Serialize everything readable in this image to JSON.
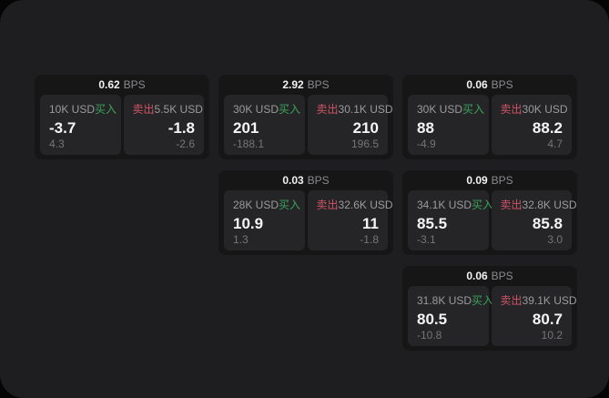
{
  "labels": {
    "buy": "买入",
    "sell": "卖出",
    "unit": "BPS"
  },
  "colors": {
    "window_bg": "#1e1e20",
    "card_bg": "#161617",
    "panel_bg": "#252527",
    "buy_green": "#3aa35a",
    "sell_red": "#cf5466"
  },
  "cards": [
    {
      "row": 1,
      "col": 1,
      "bps": "0.62",
      "buy": {
        "amount": "10K USD",
        "value": "-3.7",
        "sub": "4.3"
      },
      "sell": {
        "amount": "5.5K USD",
        "value": "-1.8",
        "sub": "-2.6"
      }
    },
    {
      "row": 1,
      "col": 2,
      "bps": "2.92",
      "buy": {
        "amount": "30K USD",
        "value": "201",
        "sub": "-188.1"
      },
      "sell": {
        "amount": "30.1K USD",
        "value": "210",
        "sub": "196.5"
      }
    },
    {
      "row": 1,
      "col": 3,
      "bps": "0.06",
      "buy": {
        "amount": "30K USD",
        "value": "88",
        "sub": "-4.9"
      },
      "sell": {
        "amount": "30K USD",
        "value": "88.2",
        "sub": "4.7"
      }
    },
    {
      "row": 2,
      "col": 2,
      "bps": "0.03",
      "buy": {
        "amount": "28K USD",
        "value": "10.9",
        "sub": "1.3"
      },
      "sell": {
        "amount": "32.6K USD",
        "value": "11",
        "sub": "-1.8"
      }
    },
    {
      "row": 2,
      "col": 3,
      "bps": "0.09",
      "buy": {
        "amount": "34.1K USD",
        "value": "85.5",
        "sub": "-3.1"
      },
      "sell": {
        "amount": "32.8K USD",
        "value": "85.8",
        "sub": "3.0"
      }
    },
    {
      "row": 3,
      "col": 3,
      "bps": "0.06",
      "buy": {
        "amount": "31.8K USD",
        "value": "80.5",
        "sub": "-10.8"
      },
      "sell": {
        "amount": "39.1K USD",
        "value": "80.7",
        "sub": "10.2"
      }
    }
  ]
}
